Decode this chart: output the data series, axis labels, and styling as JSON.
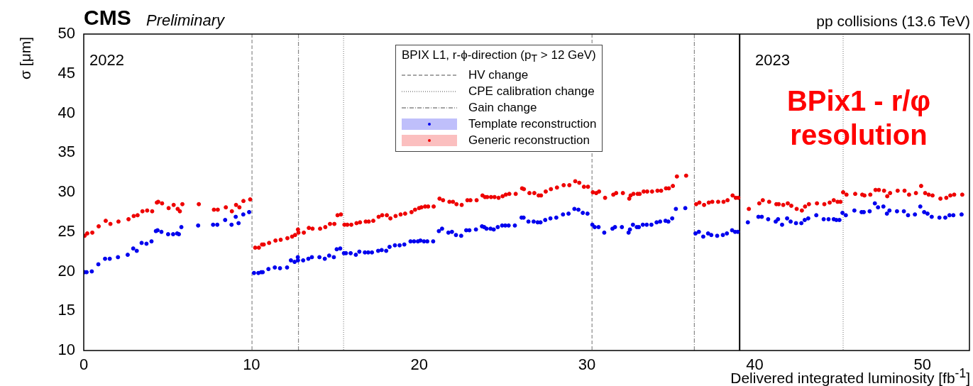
{
  "chart_data": {
    "type": "scatter",
    "title": "CMS",
    "subtitle": "Preliminary",
    "xlabel": "Delivered integrated luminosity  [fb$^{-1}$]",
    "ylabel": "σ [μm]",
    "legend_title": "BPIX L1, r-ϕ-direction (p$_{T}$ > 12 GeV)",
    "annotations": [
      "pp collisions (13.6 TeV)",
      "2022",
      "2023",
      "BPix1  - r/φ resolution",
      "HV change",
      "CPE calibration change",
      "Gain change"
    ],
    "xlim": [
      0,
      52.8
    ],
    "xticks": [
      0,
      10,
      20,
      30,
      40,
      50
    ],
    "ylim": [
      10,
      50
    ],
    "yticks": [
      10,
      15,
      20,
      25,
      30,
      35,
      40,
      45,
      50
    ],
    "grid": false,
    "legend": "top",
    "marker": "circle",
    "ref_lines": [
      {
        "axis": "x",
        "value": 10.03,
        "line_style": "dashed",
        "color": "#888888"
      },
      {
        "axis": "x",
        "value": 15.49,
        "line_style": "dotted",
        "color": "#888888"
      },
      {
        "axis": "x",
        "value": 12.8,
        "line_style": "dashdot",
        "color": "#888888"
      },
      {
        "axis": "x",
        "value": 30.3,
        "line_style": "dashed",
        "color": "#888888"
      },
      {
        "axis": "x",
        "value": 36.4,
        "line_style": "dashdot",
        "color": "#888888"
      },
      {
        "axis": "x",
        "value": 39.1,
        "line_style": "solid",
        "color": "#000000"
      },
      {
        "axis": "x",
        "value": 45.27,
        "line_style": "dotted",
        "color": "#888888"
      }
    ],
    "series": [
      {
        "name": "Template reconstruction",
        "color": "#0000ee",
        "x": [
          0.05,
          0.17,
          0.48,
          0.87,
          1.27,
          1.55,
          2.04,
          2.62,
          2.95,
          3.16,
          3.45,
          3.74,
          4.04,
          4.3,
          4.4,
          4.63,
          5.03,
          5.33,
          5.57,
          5.67,
          5.82,
          6.82,
          7.71,
          7.96,
          8.43,
          8.81,
          9.06,
          9.23,
          9.51,
          9.86,
          10.15,
          10.41,
          10.58,
          10.67,
          11.01,
          11.39,
          11.7,
          12.12,
          12.35,
          12.57,
          12.76,
          12.77,
          13.08,
          13.39,
          13.6,
          14.05,
          14.37,
          14.63,
          14.91,
          15.08,
          15.29,
          15.51,
          15.63,
          15.91,
          16.22,
          16.43,
          16.76,
          16.96,
          17.18,
          17.55,
          17.76,
          18.03,
          18.23,
          18.55,
          18.83,
          19.11,
          19.48,
          19.69,
          19.92,
          20.07,
          20.28,
          20.48,
          20.83,
          21.17,
          21.36,
          21.74,
          21.95,
          22.19,
          22.5,
          22.8,
          22.99,
          23.38,
          23.74,
          23.87,
          24.01,
          24.25,
          24.44,
          24.68,
          24.94,
          25.13,
          25.33,
          25.7,
          26.1,
          26.22,
          26.51,
          26.82,
          27.06,
          27.23,
          27.51,
          27.82,
          28.17,
          28.57,
          28.9,
          29.25,
          29.49,
          29.75,
          30.03,
          30.32,
          30.46,
          30.69,
          31.03,
          31.52,
          31.67,
          32.08,
          32.48,
          32.56,
          32.74,
          32.97,
          33.09,
          33.33,
          33.56,
          33.84,
          34.15,
          34.36,
          34.68,
          34.85,
          35.08,
          35.3,
          35.86,
          36.47,
          36.67,
          36.93,
          37.22,
          37.41,
          37.76,
          38.1,
          38.34,
          38.65,
          38.83,
          38.99,
          39.59,
          40.22,
          40.42,
          40.8,
          41.25,
          41.39,
          41.63,
          41.93,
          42.14,
          42.46,
          42.78,
          42.98,
          43.19,
          43.67,
          44.11,
          44.4,
          44.71,
          44.87,
          45.05,
          45.23,
          45.43,
          45.94,
          46.37,
          46.5,
          46.85,
          47.16,
          47.35,
          47.67,
          47.88,
          48.03,
          48.48,
          48.89,
          49.14,
          49.55,
          49.87,
          50.1,
          50.3,
          50.55,
          51.01,
          51.36,
          51.61,
          51.84,
          52.33
        ],
        "values": [
          19.9,
          19.9,
          20.0,
          20.9,
          21.6,
          21.6,
          21.8,
          22.1,
          22.9,
          22.6,
          23.6,
          23.5,
          23.8,
          25.1,
          25.2,
          25.0,
          24.7,
          24.7,
          24.8,
          24.7,
          25.6,
          25.8,
          25.9,
          25.9,
          26.5,
          25.9,
          26.9,
          26.1,
          27.2,
          27.5,
          19.8,
          19.8,
          19.9,
          19.9,
          20.3,
          20.5,
          20.4,
          20.5,
          21.4,
          21.2,
          21.8,
          21.4,
          21.4,
          21.6,
          21.8,
          21.8,
          21.6,
          22.0,
          21.8,
          22.8,
          22.9,
          22.3,
          22.3,
          22.3,
          22.1,
          22.5,
          22.4,
          22.4,
          22.4,
          22.6,
          22.7,
          22.6,
          23.1,
          23.3,
          23.3,
          23.4,
          23.8,
          23.8,
          23.8,
          23.9,
          23.8,
          23.8,
          23.8,
          25.1,
          25.4,
          24.9,
          25.0,
          24.6,
          24.5,
          25.2,
          25.2,
          25.3,
          25.7,
          25.6,
          25.4,
          25.4,
          25.3,
          25.6,
          25.8,
          25.8,
          25.8,
          25.8,
          26.8,
          26.8,
          26.3,
          26.3,
          26.2,
          26.2,
          26.5,
          26.7,
          26.8,
          27.2,
          27.3,
          27.9,
          27.8,
          27.4,
          27.3,
          25.9,
          25.6,
          25.6,
          24.9,
          25.4,
          25.6,
          25.6,
          24.9,
          25.3,
          25.9,
          25.6,
          25.6,
          25.9,
          25.9,
          25.9,
          26.2,
          26.3,
          26.4,
          26.3,
          26.7,
          27.9,
          28.0,
          24.8,
          25.0,
          24.4,
          24.8,
          24.6,
          24.5,
          24.6,
          24.8,
          25.2,
          25.0,
          25.0,
          26.2,
          26.9,
          26.9,
          26.6,
          26.3,
          26.6,
          25.9,
          26.7,
          26.3,
          26.1,
          26.1,
          26.5,
          26.7,
          27.1,
          26.6,
          26.6,
          26.6,
          26.5,
          26.5,
          27.4,
          27.1,
          27.7,
          27.5,
          27.5,
          27.6,
          28.6,
          28.1,
          28.2,
          27.3,
          27.7,
          27.6,
          27.6,
          27.1,
          27.2,
          28.2,
          27.5,
          27.3,
          26.9,
          26.8,
          26.8,
          27.1,
          27.1,
          27.2
        ]
      },
      {
        "name": "Generic reconstruction",
        "color": "#ee0000",
        "x": [
          0.05,
          0.21,
          0.51,
          0.89,
          1.31,
          1.59,
          2.07,
          2.67,
          2.98,
          3.21,
          3.5,
          3.78,
          4.08,
          4.36,
          4.44,
          4.67,
          5.06,
          5.36,
          5.6,
          5.73,
          5.88,
          6.86,
          7.76,
          7.99,
          8.47,
          8.83,
          9.08,
          9.28,
          9.52,
          9.92,
          10.22,
          10.44,
          10.63,
          10.73,
          11.05,
          11.43,
          11.74,
          12.14,
          12.42,
          12.6,
          12.77,
          12.8,
          13.12,
          13.42,
          13.64,
          14.09,
          14.4,
          14.68,
          14.94,
          15.13,
          15.33,
          15.54,
          15.71,
          15.95,
          16.26,
          16.47,
          16.81,
          16.99,
          17.26,
          17.58,
          17.79,
          18.07,
          18.28,
          18.59,
          18.89,
          19.16,
          19.54,
          19.75,
          19.99,
          20.13,
          20.35,
          20.53,
          20.86,
          21.21,
          21.42,
          21.8,
          22.01,
          22.22,
          22.53,
          22.87,
          23.05,
          23.42,
          23.77,
          23.92,
          24.05,
          24.28,
          24.49,
          24.73,
          24.97,
          25.16,
          25.37,
          25.75,
          26.13,
          26.24,
          26.57,
          26.86,
          27.12,
          27.26,
          27.54,
          27.85,
          28.21,
          28.61,
          28.95,
          29.3,
          29.54,
          29.82,
          30.06,
          30.35,
          30.55,
          30.72,
          31.08,
          31.57,
          31.74,
          32.14,
          32.52,
          32.6,
          32.77,
          33.02,
          33.14,
          33.38,
          33.59,
          33.88,
          34.2,
          34.42,
          34.71,
          34.88,
          35.12,
          35.36,
          35.91,
          36.51,
          36.7,
          36.98,
          37.26,
          37.47,
          37.82,
          38.14,
          38.38,
          38.68,
          38.87,
          39.02,
          39.65,
          40.27,
          40.48,
          40.86,
          41.29,
          41.43,
          41.7,
          41.97,
          42.18,
          42.5,
          42.81,
          43.0,
          43.23,
          43.71,
          44.15,
          44.47,
          44.71,
          44.94,
          45.11,
          45.27,
          45.47,
          45.99,
          46.41,
          46.54,
          46.89,
          47.2,
          47.4,
          47.71,
          47.9,
          48.07,
          48.52,
          48.93,
          49.2,
          49.61,
          49.92,
          50.16,
          50.37,
          50.6,
          51.07,
          51.42,
          51.66,
          51.89,
          52.37
        ],
        "values": [
          24.5,
          24.8,
          24.9,
          25.7,
          26.4,
          26.0,
          26.3,
          26.6,
          27.0,
          27.1,
          27.6,
          27.7,
          27.6,
          28.7,
          28.8,
          28.6,
          28.0,
          28.4,
          27.9,
          27.6,
          28.5,
          28.5,
          27.8,
          27.8,
          28.1,
          27.6,
          28.4,
          28.1,
          28.9,
          29.1,
          23.0,
          23.0,
          23.4,
          23.4,
          23.6,
          23.9,
          24.0,
          24.2,
          24.4,
          24.6,
          25.3,
          24.9,
          24.9,
          25.5,
          25.4,
          25.4,
          25.6,
          26.0,
          26.0,
          27.1,
          27.2,
          25.9,
          25.9,
          25.9,
          26.1,
          26.2,
          26.3,
          26.3,
          26.4,
          26.9,
          27.1,
          27.1,
          26.7,
          27.0,
          27.2,
          27.3,
          27.5,
          27.8,
          28.0,
          28.1,
          28.2,
          28.2,
          28.2,
          29.2,
          29.0,
          28.8,
          28.8,
          28.5,
          28.4,
          29.0,
          29.0,
          29.0,
          29.6,
          29.4,
          29.4,
          29.4,
          29.4,
          29.3,
          29.5,
          29.7,
          29.8,
          29.8,
          30.5,
          30.4,
          29.9,
          29.9,
          29.6,
          29.6,
          30.1,
          30.4,
          30.6,
          30.9,
          30.9,
          31.4,
          31.2,
          30.7,
          30.7,
          30.0,
          29.9,
          30.1,
          29.3,
          29.7,
          29.9,
          29.9,
          29.2,
          29.6,
          29.8,
          29.8,
          29.8,
          30.1,
          30.1,
          30.1,
          30.2,
          30.2,
          30.5,
          30.5,
          30.8,
          32.0,
          32.1,
          28.5,
          28.7,
          28.4,
          28.7,
          28.8,
          28.8,
          28.8,
          29.0,
          29.6,
          29.3,
          29.3,
          27.9,
          28.6,
          29.0,
          28.8,
          28.5,
          28.5,
          28.4,
          28.6,
          28.3,
          27.9,
          27.7,
          28.2,
          28.5,
          28.6,
          28.5,
          28.7,
          29.0,
          28.8,
          28.8,
          30.0,
          29.7,
          29.8,
          29.7,
          29.6,
          29.7,
          30.3,
          30.3,
          30.2,
          29.5,
          29.9,
          30.2,
          30.2,
          29.7,
          29.9,
          30.8,
          29.9,
          29.7,
          29.6,
          29.2,
          29.3,
          29.6,
          29.7,
          29.7
        ]
      }
    ]
  }
}
